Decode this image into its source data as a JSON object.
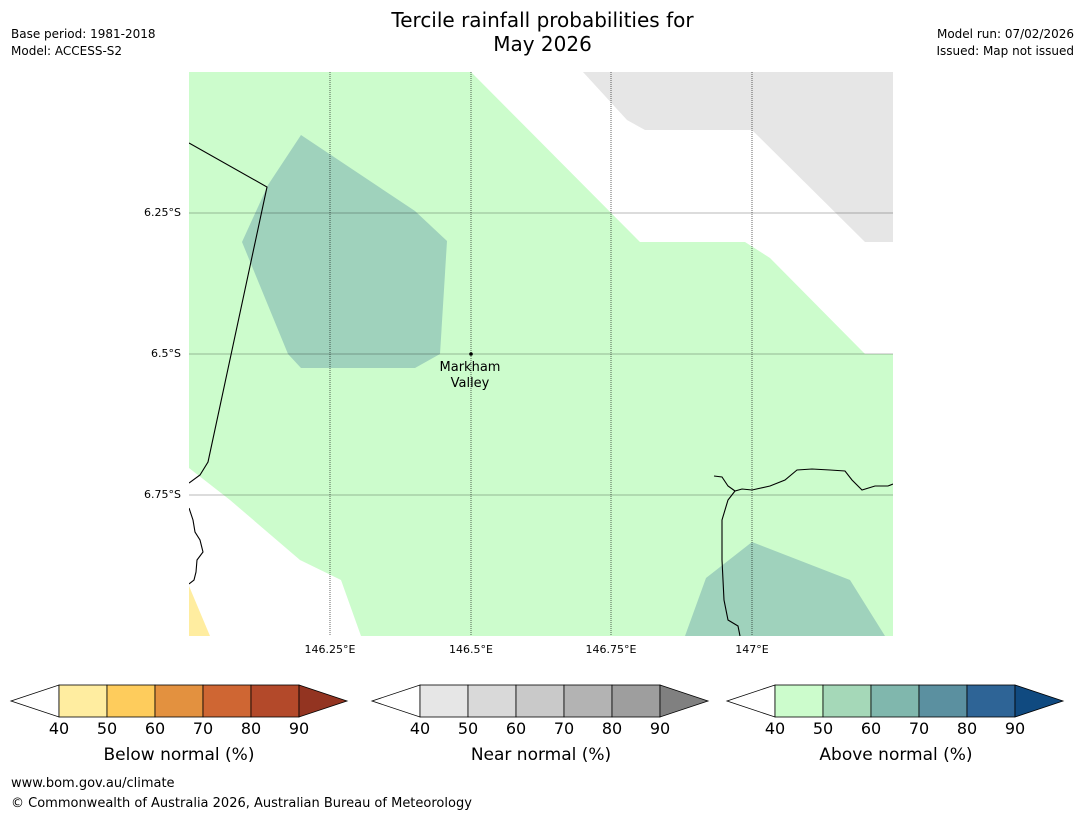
{
  "title_line1": "Tercile rainfall probabilities for",
  "title_line2": "May 2026",
  "meta_left": {
    "base_period": "Base period: 1981-2018",
    "model": "Model: ACCESS-S2"
  },
  "meta_right": {
    "model_run": "Model run: 07/02/2026",
    "issued": "Issued: Map not issued"
  },
  "map": {
    "lat_labels": [
      "6.25°S",
      "6.5°S",
      "6.75°S"
    ],
    "lon_labels": [
      "146.25°E",
      "146.5°E",
      "146.75°E",
      "147°E"
    ],
    "place": {
      "name_line1": "Markham",
      "name_line2": "Valley"
    },
    "colors": {
      "ocean": "#ffffff",
      "above_40_50": "#ccfccc",
      "above_50_60": "#9fd2bc",
      "near_40_50": "#e6e6e6",
      "below_40_50": "#ffeda0"
    }
  },
  "colorbars": [
    {
      "title": "Below normal (%)",
      "ticks": [
        "40",
        "50",
        "60",
        "70",
        "80",
        "90"
      ],
      "colors": [
        "#ffffff",
        "#ffeda0",
        "#fecc5c",
        "#e3913f",
        "#cf6633",
        "#b3492a",
        "#933421"
      ]
    },
    {
      "title": "Near normal (%)",
      "ticks": [
        "40",
        "50",
        "60",
        "70",
        "80",
        "90"
      ],
      "colors": [
        "#ffffff",
        "#e6e6e6",
        "#d9d9d9",
        "#c9c9c9",
        "#b3b3b3",
        "#9e9e9e",
        "#808080"
      ]
    },
    {
      "title": "Above normal (%)",
      "ticks": [
        "40",
        "50",
        "60",
        "70",
        "80",
        "90"
      ],
      "colors": [
        "#ffffff",
        "#ccfccc",
        "#a5d8b8",
        "#80b7ad",
        "#5b90a0",
        "#2e6496",
        "#104a80"
      ]
    }
  ],
  "footer": {
    "url": "www.bom.gov.au/climate",
    "copyright": "© Commonwealth of Australia 2026, Australian Bureau of Meteorology"
  }
}
